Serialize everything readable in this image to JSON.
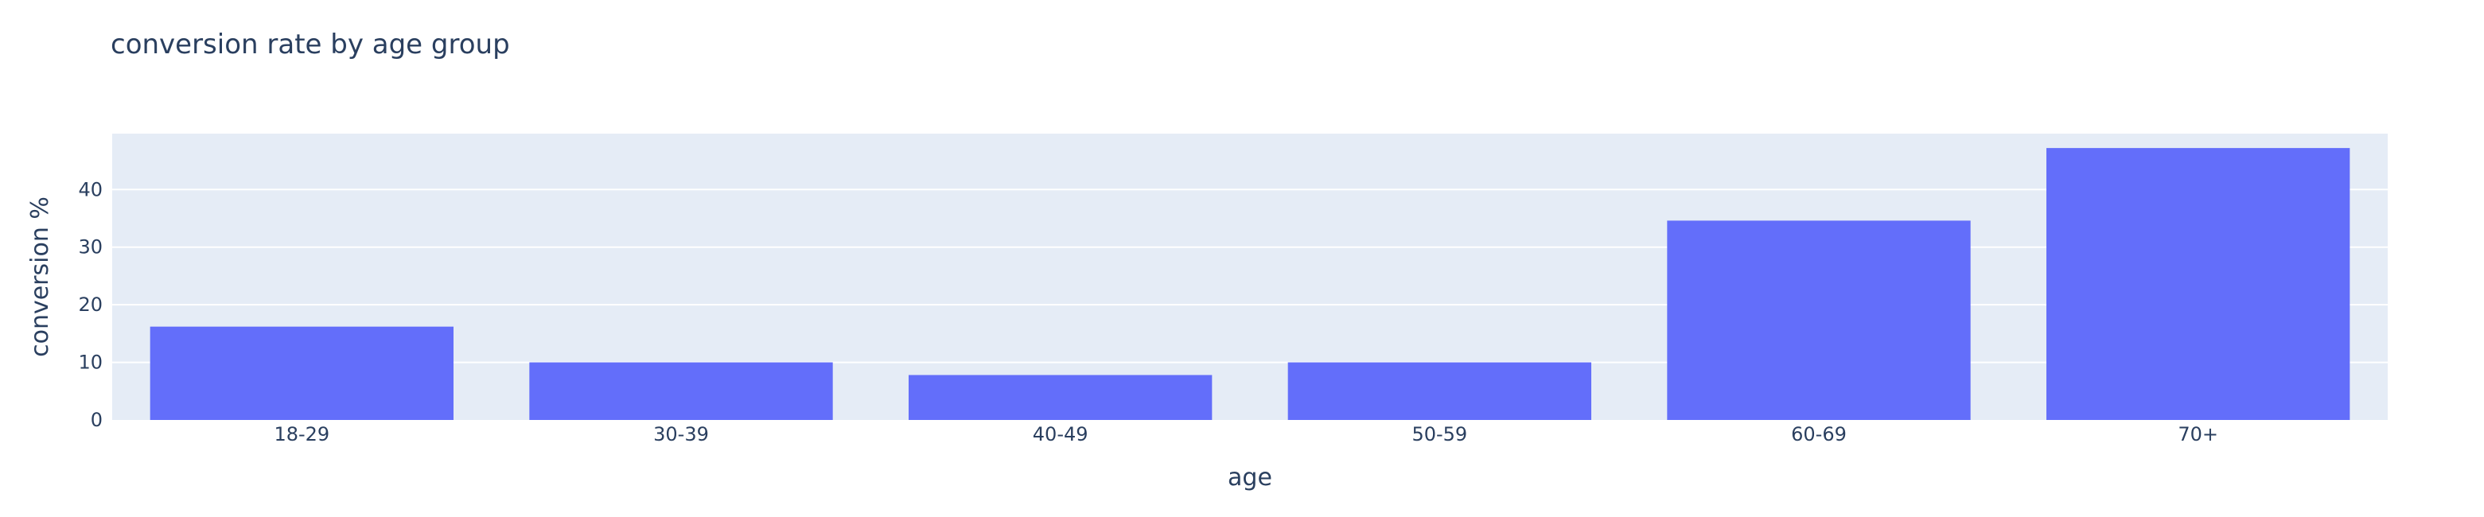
{
  "chart_data": {
    "type": "bar",
    "title": "conversion rate by age group",
    "xlabel": "age",
    "ylabel": "conversion %",
    "categories": [
      "18-29",
      "30-39",
      "40-49",
      "50-59",
      "60-69",
      "70+"
    ],
    "values": [
      16.2,
      10.0,
      7.8,
      10.0,
      34.6,
      47.2
    ],
    "ylim": [
      0,
      49.7
    ],
    "yticks": [
      0,
      10,
      20,
      30,
      40
    ],
    "grid": true,
    "legend": "none",
    "colors": {
      "bar": "#636efa",
      "plot_background": "#e5ecf6",
      "grid": "#ffffff",
      "text": "#2a3f5f"
    }
  }
}
